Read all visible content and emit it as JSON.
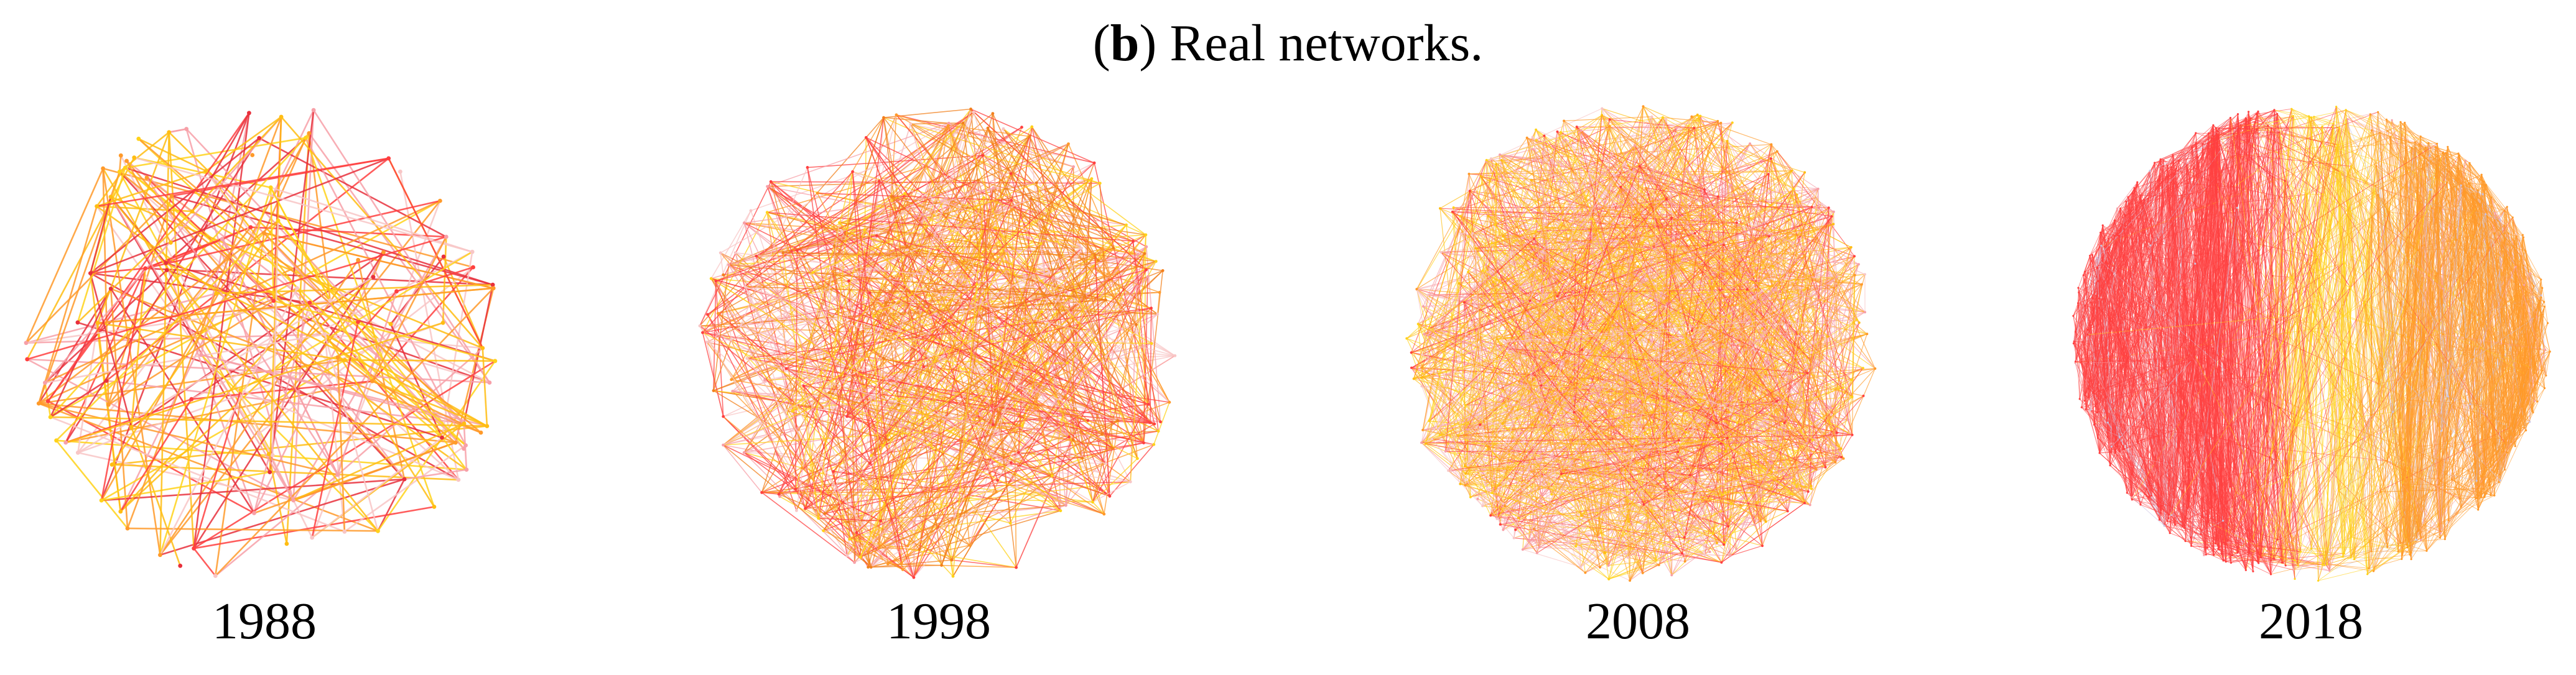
{
  "figure": {
    "title_letter": "b",
    "title_text": "Real networks."
  },
  "colors": {
    "red": "#ff4040",
    "crimson": "#e8303c",
    "orange": "#ff9a2a",
    "dark_orange": "#f2801c",
    "yellow": "#ffd21a",
    "gold": "#ffbd12",
    "pink": "#f7a0a8",
    "light_pink": "#f8c6c6",
    "lavender": "#c9c2e0",
    "background": "#ffffff"
  },
  "panels": [
    {
      "id": "1988",
      "label": "1988",
      "density": "sparse",
      "palette": [
        "red",
        "crimson",
        "orange",
        "yellow",
        "gold",
        "pink",
        "light_pink"
      ],
      "layout": "mixed"
    },
    {
      "id": "1998",
      "label": "1998",
      "density": "medium",
      "palette": [
        "red",
        "orange",
        "dark_orange",
        "yellow",
        "pink",
        "light_pink"
      ],
      "layout": "mixed"
    },
    {
      "id": "2008",
      "label": "2008",
      "density": "dense",
      "palette": [
        "red",
        "orange",
        "yellow",
        "gold",
        "pink",
        "light_pink"
      ],
      "layout": "mixed"
    },
    {
      "id": "2018",
      "label": "2018",
      "density": "very-dense",
      "palette": [
        "red",
        "yellow",
        "orange",
        "lavender",
        "pink"
      ],
      "layout": "banded"
    }
  ]
}
